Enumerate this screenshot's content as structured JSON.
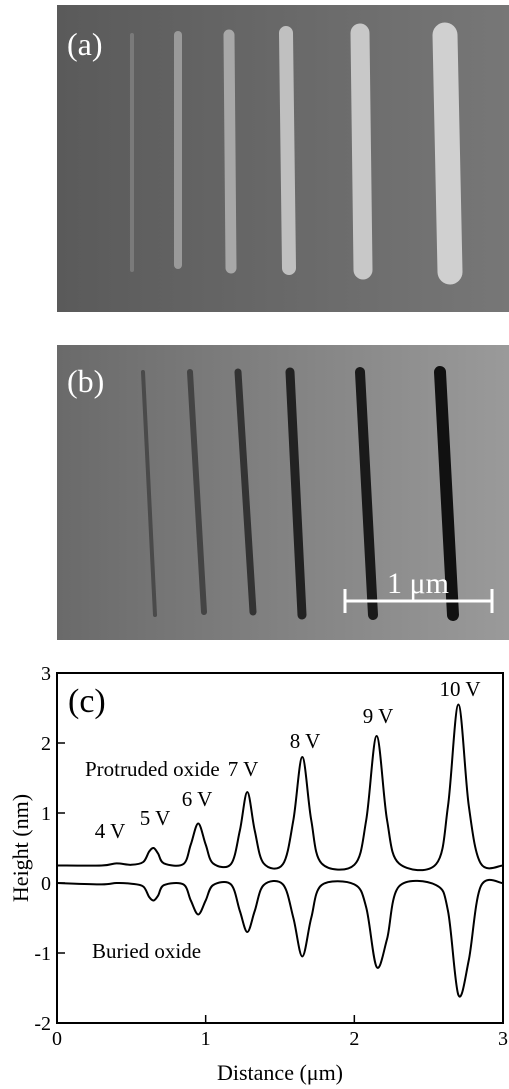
{
  "panels": {
    "a": {
      "label": "(a)"
    },
    "b": {
      "label": "(b)",
      "scale_bar": "1 μm"
    }
  },
  "chart_data": {
    "type": "line",
    "panel_label": "(c)",
    "x_label": "Distance (μm)",
    "y_label": "Height (nm)",
    "annotations": [
      "4 V",
      "5 V",
      "6 V",
      "7 V",
      "8 V",
      "9 V",
      "10 V",
      "Protruded oxide",
      "Buried oxide"
    ],
    "x": [
      0,
      0.3,
      0.4,
      0.5,
      0.58,
      0.62,
      0.65,
      0.68,
      0.72,
      0.85,
      0.9,
      0.95,
      1.0,
      1.05,
      1.17,
      1.23,
      1.28,
      1.33,
      1.39,
      1.52,
      1.59,
      1.65,
      1.71,
      1.78,
      2.0,
      2.08,
      2.15,
      2.22,
      2.3,
      2.55,
      2.63,
      2.7,
      2.77,
      2.85,
      3.0
    ],
    "series": [
      {
        "color": "#000000",
        "values": [
          0.25,
          0.25,
          0.28,
          0.26,
          0.3,
          0.45,
          0.5,
          0.42,
          0.28,
          0.27,
          0.55,
          0.85,
          0.55,
          0.28,
          0.27,
          0.75,
          1.3,
          0.75,
          0.28,
          0.27,
          0.9,
          1.8,
          0.9,
          0.28,
          0.26,
          0.9,
          2.1,
          0.9,
          0.28,
          0.27,
          1.1,
          2.55,
          1.1,
          0.28,
          0.25
        ]
      },
      {
        "color": "#000000",
        "values": [
          0,
          -0.02,
          0,
          -0.01,
          -0.05,
          -0.2,
          -0.25,
          -0.18,
          -0.03,
          -0.02,
          -0.25,
          -0.45,
          -0.25,
          -0.03,
          -0.02,
          -0.4,
          -0.7,
          -0.4,
          -0.03,
          -0.02,
          -0.5,
          -1.05,
          -0.5,
          -0.03,
          -0.02,
          -0.35,
          -1.2,
          -0.8,
          -0.05,
          -0.03,
          -0.4,
          -1.6,
          -1.1,
          -0.05,
          0
        ]
      }
    ],
    "xlim": [
      0,
      3
    ],
    "ylim": [
      -2,
      3
    ],
    "xticks": [
      0,
      1,
      2,
      3
    ],
    "yticks": [
      -2,
      -1,
      0,
      1,
      2,
      3
    ]
  }
}
